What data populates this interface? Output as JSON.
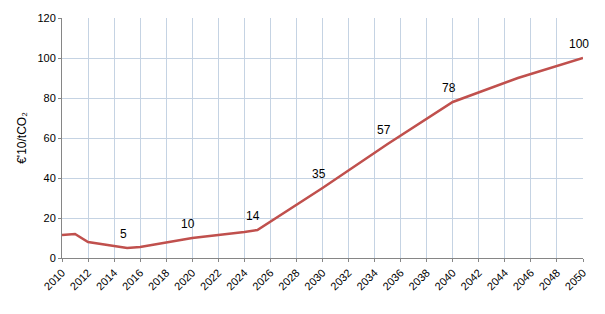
{
  "chart_data": {
    "type": "line",
    "y_label": "€'10/tCO₂",
    "x": [
      2010,
      2011,
      2012,
      2013,
      2014,
      2015,
      2016,
      2020,
      2024,
      2025,
      2030,
      2035,
      2040,
      2045,
      2050
    ],
    "values": [
      11.5,
      12,
      8,
      7,
      6.3,
      5,
      5.5,
      10,
      13,
      14,
      35,
      57,
      78,
      90,
      100
    ],
    "color": "#c0504d",
    "xlim": [
      2010,
      2050
    ],
    "xticks": [
      2010,
      2012,
      2014,
      2016,
      2018,
      2020,
      2022,
      2024,
      2026,
      2028,
      2030,
      2032,
      2034,
      2036,
      2038,
      2040,
      2042,
      2044,
      2046,
      2048,
      2050
    ],
    "ylim": [
      0,
      120
    ],
    "yticks": [
      0,
      20,
      40,
      60,
      80,
      100,
      120
    ],
    "grid": true,
    "annotations": [
      {
        "x": 2015,
        "y": 5,
        "text": "5"
      },
      {
        "x": 2020,
        "y": 10,
        "text": "10"
      },
      {
        "x": 2025,
        "y": 14,
        "text": "14"
      },
      {
        "x": 2030,
        "y": 35,
        "text": "35"
      },
      {
        "x": 2035,
        "y": 57,
        "text": "57"
      },
      {
        "x": 2040,
        "y": 78,
        "text": "78"
      },
      {
        "x": 2050,
        "y": 100,
        "text": "100"
      }
    ]
  }
}
